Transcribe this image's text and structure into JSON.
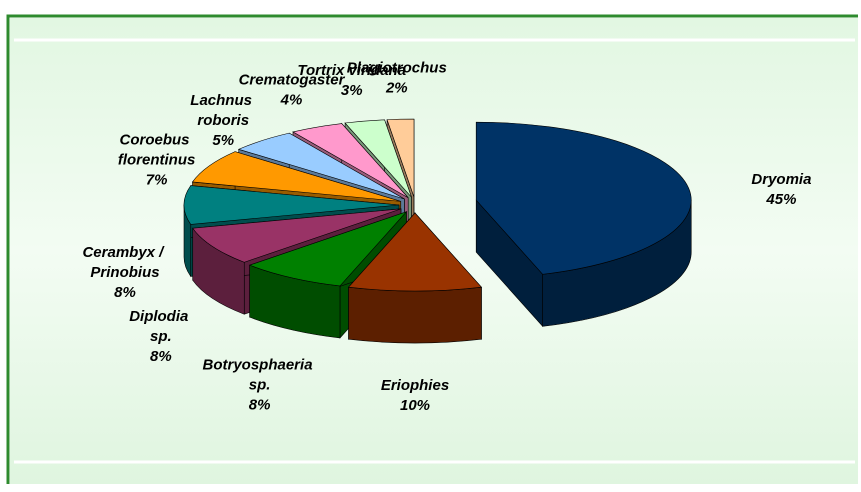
{
  "chart_data": {
    "type": "pie3d",
    "categories": [
      "Dryomia",
      "Eriophies",
      "Botryosphaeria sp.",
      "Diplodia sp.",
      "Cerambyx / Prinobius",
      "Coroebus florentinus",
      "Lachnus roboris",
      "Crematogaster",
      "Tortrix viridana",
      "Plagiotrochus"
    ],
    "values": [
      45,
      10,
      8,
      8,
      8,
      7,
      5,
      4,
      3,
      2
    ],
    "value_labels": [
      "45%",
      "10%",
      "8%",
      "8%",
      "8%",
      "7%",
      "5%",
      "4%",
      "3%",
      "2%"
    ],
    "colors": [
      "#003366",
      "#993300",
      "#008000",
      "#993366",
      "#008080",
      "#ff9900",
      "#99ccff",
      "#ff99cc",
      "#ccffcc",
      "#ffcc99"
    ]
  }
}
